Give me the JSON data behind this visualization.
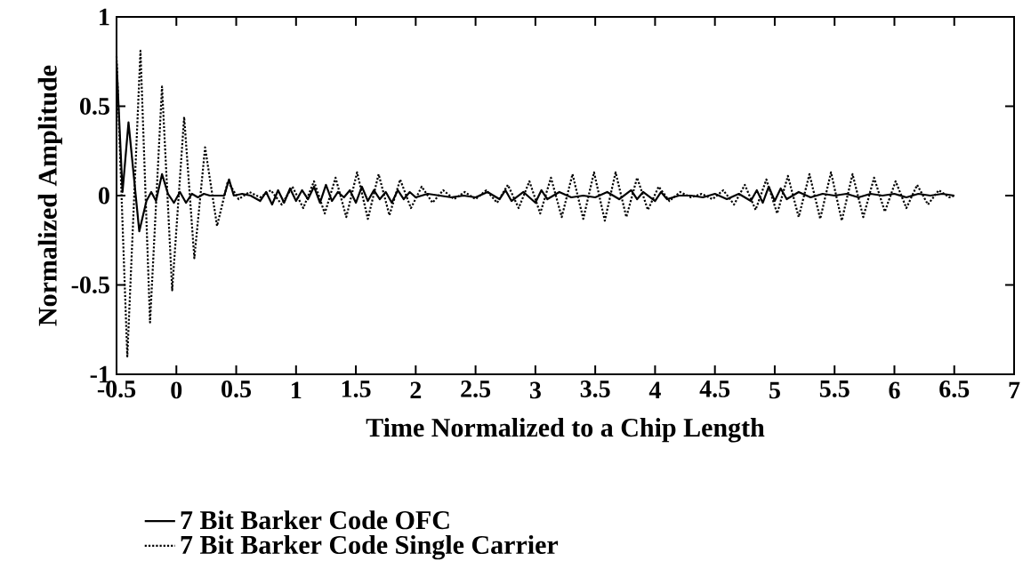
{
  "chart_data": {
    "type": "line",
    "xlabel": "Time Normalized to a Chip Length",
    "ylabel": "Normalized Amplitude",
    "xlim": [
      -0.5,
      7
    ],
    "ylim": [
      -1,
      1
    ],
    "xticks": [
      -0.5,
      0,
      0.5,
      1,
      1.5,
      2,
      2.5,
      3,
      3.5,
      4,
      4.5,
      5,
      5.5,
      6,
      6.5,
      7
    ],
    "yticks": [
      -1,
      -0.5,
      0,
      0.5,
      1
    ],
    "legend": "bottom",
    "marker": "none",
    "series": [
      {
        "name": "7 Bit Barker Code OFC",
        "color": "#000000",
        "line_style": "solid",
        "x": [
          -0.5,
          -0.45,
          -0.4,
          -0.31,
          -0.25,
          -0.21,
          -0.17,
          -0.12,
          -0.07,
          -0.02,
          0.03,
          0.08,
          0.13,
          0.18,
          0.23,
          0.28,
          0.33,
          0.4,
          0.44,
          0.48,
          0.55,
          0.62,
          0.7,
          0.75,
          0.8,
          0.85,
          0.9,
          0.95,
          1.0,
          1.05,
          1.1,
          1.15,
          1.2,
          1.25,
          1.3,
          1.35,
          1.4,
          1.45,
          1.5,
          1.55,
          1.6,
          1.65,
          1.7,
          1.75,
          1.8,
          1.85,
          1.9,
          1.95,
          2.0,
          2.1,
          2.2,
          2.3,
          2.4,
          2.5,
          2.6,
          2.7,
          2.75,
          2.8,
          2.9,
          3.0,
          3.05,
          3.1,
          3.2,
          3.3,
          3.4,
          3.5,
          3.6,
          3.7,
          3.8,
          3.85,
          3.9,
          4.0,
          4.05,
          4.1,
          4.2,
          4.3,
          4.4,
          4.5,
          4.6,
          4.7,
          4.8,
          4.85,
          4.9,
          4.95,
          5.0,
          5.05,
          5.1,
          5.2,
          5.3,
          5.4,
          5.5,
          5.6,
          5.7,
          5.8,
          5.9,
          6.0,
          6.1,
          6.2,
          6.3,
          6.4,
          6.5
        ],
        "values": [
          0.75,
          0.02,
          0.41,
          -0.2,
          -0.03,
          0.02,
          -0.03,
          0.12,
          0.01,
          -0.04,
          0.02,
          -0.04,
          0.01,
          -0.01,
          0.01,
          0.0,
          0.0,
          0.0,
          0.09,
          0.0,
          0.01,
          0.0,
          -0.03,
          0.02,
          -0.05,
          0.03,
          -0.04,
          0.04,
          -0.03,
          0.03,
          -0.02,
          0.05,
          -0.04,
          0.06,
          -0.03,
          0.02,
          -0.01,
          0.03,
          -0.04,
          0.05,
          -0.03,
          0.03,
          -0.02,
          0.02,
          -0.04,
          0.03,
          -0.02,
          0.02,
          -0.01,
          0.01,
          0.0,
          -0.01,
          0.0,
          -0.01,
          0.02,
          -0.02,
          0.03,
          -0.03,
          0.02,
          -0.04,
          0.03,
          -0.02,
          0.02,
          -0.01,
          0.0,
          -0.01,
          0.02,
          -0.02,
          0.03,
          -0.02,
          0.02,
          -0.03,
          0.02,
          -0.02,
          0.0,
          0.0,
          -0.01,
          0.01,
          -0.02,
          0.01,
          -0.03,
          0.03,
          -0.04,
          0.05,
          -0.03,
          0.04,
          -0.02,
          0.02,
          -0.01,
          0.01,
          0.0,
          0.01,
          -0.01,
          0.01,
          0.0,
          0.01,
          -0.01,
          0.01,
          0.0,
          0.01,
          0.0
        ]
      },
      {
        "name": "7 Bit Barker Code Single Carrier",
        "color": "#000000",
        "line_style": "dotted",
        "x": [
          -0.5,
          -0.41,
          -0.3,
          -0.22,
          -0.12,
          -0.035,
          0.065,
          0.15,
          0.24,
          0.34,
          0.43,
          0.52,
          0.61,
          0.7,
          0.79,
          0.88,
          0.97,
          1.06,
          1.15,
          1.24,
          1.33,
          1.42,
          1.51,
          1.6,
          1.69,
          1.78,
          1.87,
          1.96,
          2.05,
          2.14,
          2.23,
          2.32,
          2.41,
          2.5,
          2.59,
          2.68,
          2.77,
          2.86,
          2.95,
          3.04,
          3.13,
          3.22,
          3.31,
          3.4,
          3.49,
          3.58,
          3.67,
          3.76,
          3.85,
          3.94,
          4.03,
          4.12,
          4.21,
          4.3,
          4.39,
          4.48,
          4.57,
          4.66,
          4.75,
          4.84,
          4.93,
          5.02,
          5.11,
          5.2,
          5.29,
          5.38,
          5.47,
          5.56,
          5.65,
          5.74,
          5.83,
          5.92,
          6.01,
          6.1,
          6.19,
          6.28,
          6.37,
          6.46,
          6.5
        ],
        "values": [
          0.78,
          -0.9,
          0.81,
          -0.71,
          0.61,
          -0.53,
          0.44,
          -0.35,
          0.27,
          -0.17,
          0.08,
          -0.02,
          0.02,
          -0.01,
          0.03,
          -0.05,
          0.05,
          -0.07,
          0.08,
          -0.1,
          0.1,
          -0.12,
          0.13,
          -0.13,
          0.12,
          -0.11,
          0.09,
          -0.07,
          0.05,
          -0.04,
          0.03,
          -0.02,
          0.02,
          -0.02,
          0.03,
          -0.04,
          0.06,
          -0.07,
          0.08,
          -0.1,
          0.1,
          -0.12,
          0.12,
          -0.13,
          0.13,
          -0.14,
          0.13,
          -0.12,
          0.1,
          -0.08,
          0.05,
          -0.03,
          0.02,
          -0.01,
          0.01,
          -0.02,
          0.03,
          -0.05,
          0.06,
          -0.08,
          0.09,
          -0.1,
          0.11,
          -0.12,
          0.12,
          -0.13,
          0.13,
          -0.14,
          0.12,
          -0.12,
          0.1,
          -0.09,
          0.08,
          -0.07,
          0.06,
          -0.05,
          0.03,
          -0.01,
          0.0
        ]
      }
    ]
  }
}
